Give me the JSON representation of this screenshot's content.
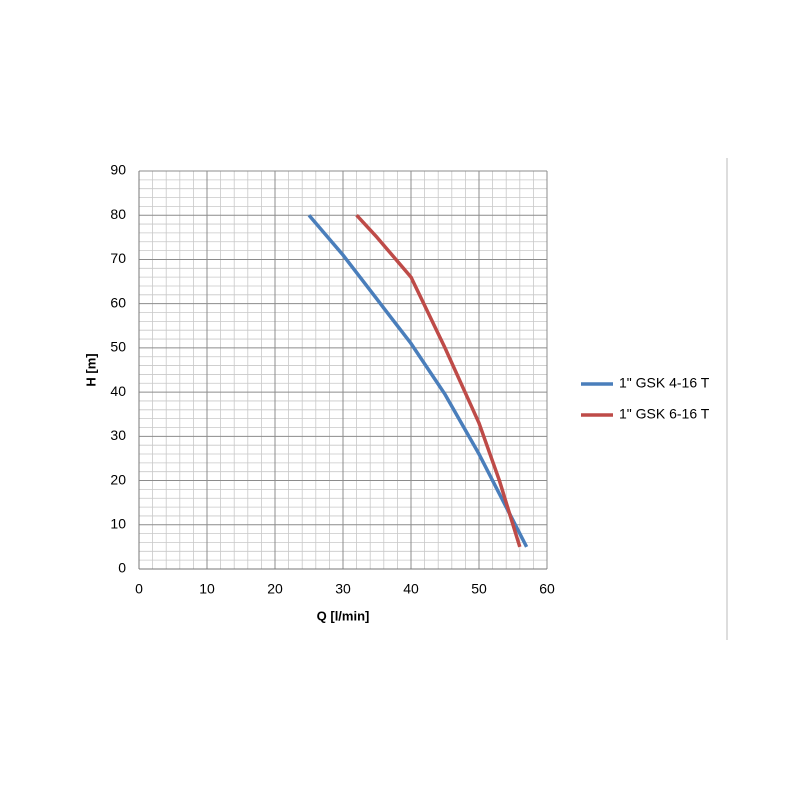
{
  "chart_data": {
    "type": "line",
    "xlabel": "Q [l/min]",
    "ylabel": "H [m]",
    "xlim": [
      0,
      60
    ],
    "xticks": [
      0,
      10,
      20,
      30,
      40,
      50,
      60
    ],
    "ylim": [
      0,
      90
    ],
    "yticks": [
      0,
      10,
      20,
      30,
      40,
      50,
      60,
      70,
      80,
      90
    ],
    "grid": true,
    "minor_grid": true,
    "legend": "right",
    "series": [
      {
        "name": "1\" GSK 4-16 T",
        "color": "#4a7ebb",
        "x": [
          25,
          30,
          35,
          40,
          45,
          50,
          55,
          57
        ],
        "values": [
          80,
          71,
          61,
          51,
          39.5,
          26,
          11,
          5
        ]
      },
      {
        "name": "1\" GSK 6-16 T",
        "color": "#be4b48",
        "x": [
          32,
          35,
          40,
          45,
          50,
          53,
          56
        ],
        "values": [
          80,
          75,
          66,
          50,
          33,
          20,
          5
        ]
      }
    ]
  }
}
